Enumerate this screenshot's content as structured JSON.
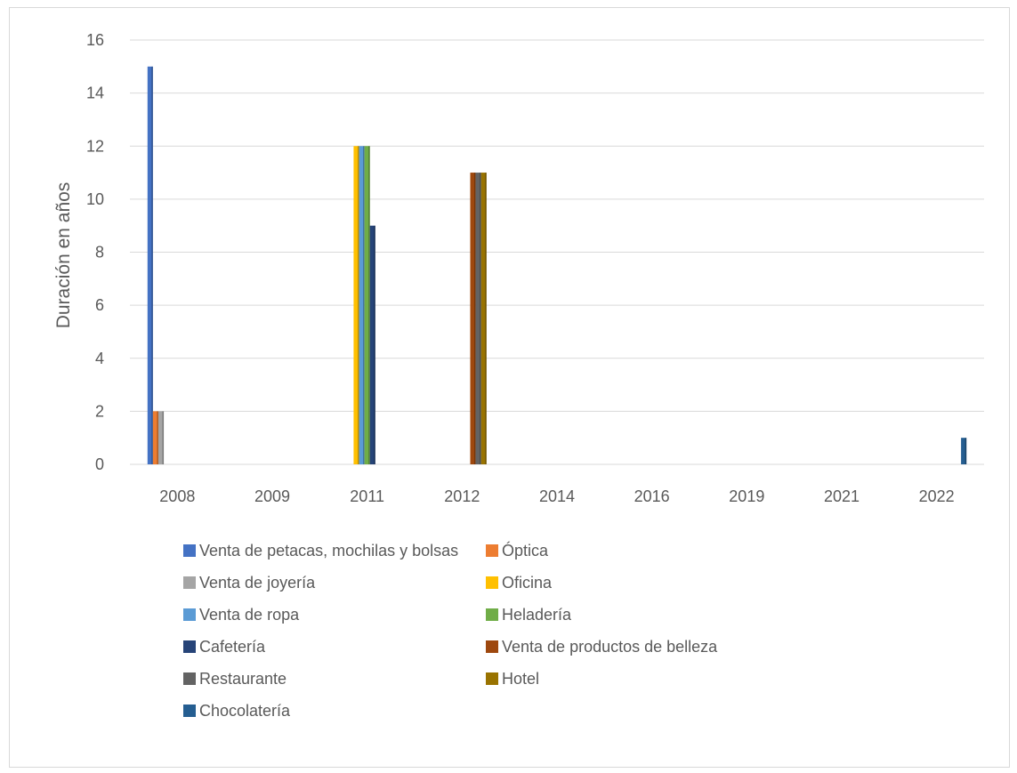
{
  "chart_data": {
    "type": "bar",
    "ylabel": "Duración en años",
    "ylim": [
      0,
      16
    ],
    "yticks": [
      "0",
      "2",
      "4",
      "6",
      "8",
      "10",
      "12",
      "14",
      "16"
    ],
    "categories": [
      "2008",
      "2009",
      "2011",
      "2012",
      "2014",
      "2016",
      "2019",
      "2021",
      "2022"
    ],
    "grid": true,
    "legend_position": "bottom",
    "series": [
      {
        "name": "Venta de petacas, mochilas y bolsas",
        "color": "#4472C4",
        "values": [
          15,
          0,
          0,
          0,
          0,
          0,
          0,
          0,
          0
        ]
      },
      {
        "name": "Óptica",
        "color": "#ED7D31",
        "values": [
          2,
          0,
          0,
          0,
          0,
          0,
          0,
          0,
          0
        ]
      },
      {
        "name": "Venta de joyería",
        "color": "#A5A5A5",
        "values": [
          2,
          0,
          0,
          0,
          0,
          0,
          0,
          0,
          0
        ]
      },
      {
        "name": "Oficina",
        "color": "#FFC000",
        "values": [
          0,
          0,
          12,
          0,
          0,
          0,
          0,
          0,
          0
        ]
      },
      {
        "name": "Venta de ropa",
        "color": "#5B9BD5",
        "values": [
          0,
          0,
          12,
          0,
          0,
          0,
          0,
          0,
          0
        ]
      },
      {
        "name": "Heladería",
        "color": "#70AD47",
        "values": [
          0,
          0,
          12,
          0,
          0,
          0,
          0,
          0,
          0
        ]
      },
      {
        "name": "Cafetería",
        "color": "#264478",
        "values": [
          0,
          0,
          9,
          0,
          0,
          0,
          0,
          0,
          0
        ]
      },
      {
        "name": "Venta de productos de belleza",
        "color": "#9E480E",
        "values": [
          0,
          0,
          0,
          11,
          0,
          0,
          0,
          0,
          0
        ]
      },
      {
        "name": "Restaurante",
        "color": "#636363",
        "values": [
          0,
          0,
          0,
          11,
          0,
          0,
          0,
          0,
          0
        ]
      },
      {
        "name": "Hotel",
        "color": "#997300",
        "values": [
          0,
          0,
          0,
          11,
          0,
          0,
          0,
          0,
          0
        ]
      },
      {
        "name": "Chocolatería",
        "color": "#255E91",
        "values": [
          0,
          0,
          0,
          0,
          0,
          0,
          0,
          0,
          1
        ]
      }
    ]
  }
}
